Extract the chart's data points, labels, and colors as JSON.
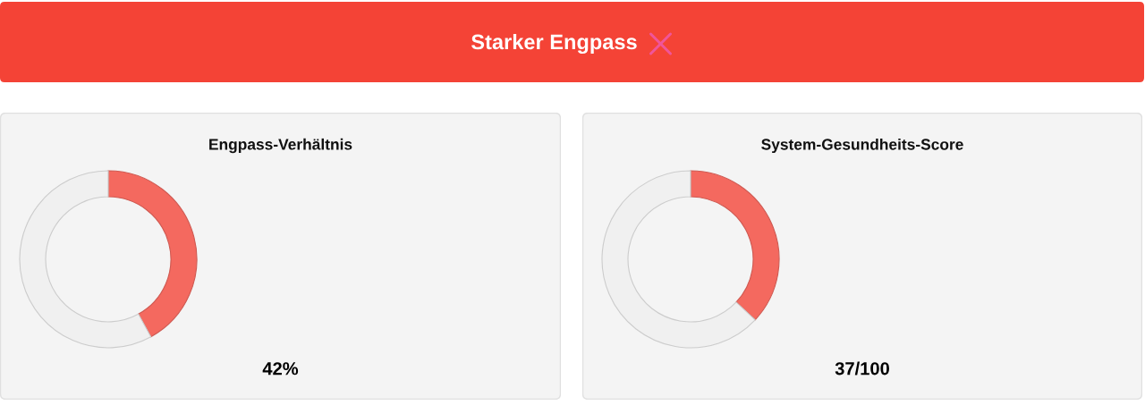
{
  "chart_data": [
    {
      "type": "other",
      "title": "Starker Engpass"
    },
    {
      "type": "donut",
      "title": "Engpass-Verhältnis",
      "categories": [
        null,
        null
      ],
      "values": [
        42,
        58
      ],
      "colors": [
        "#f4695f",
        "#f0f0f0"
      ],
      "annotations": [
        "42%"
      ]
    },
    {
      "type": "donut",
      "title": "System-Gesundheits-Score",
      "categories": [
        null,
        null
      ],
      "values": [
        37,
        63
      ],
      "colors": [
        "#f4695f",
        "#f0f0f0"
      ],
      "annotations": [
        "37/100"
      ]
    }
  ]
}
